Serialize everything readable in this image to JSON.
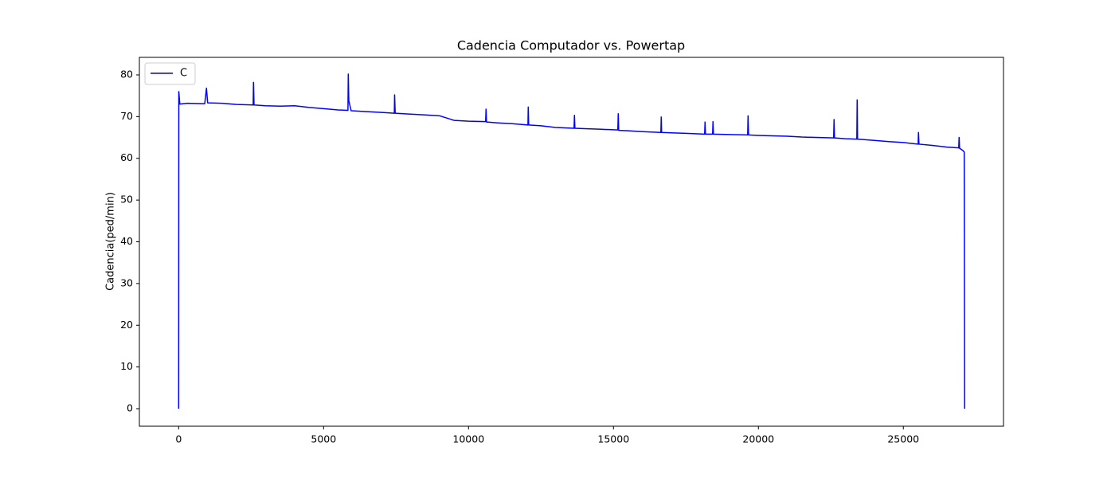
{
  "chart_data": {
    "type": "line",
    "title": "Cadencia Computador vs. Powertap",
    "ylabel": "Cadencia(ped/min)",
    "x": [
      0,
      5,
      40,
      300,
      900,
      960,
      1000,
      1500,
      2000,
      2570,
      2582,
      2600,
      3000,
      3500,
      4000,
      4500,
      5000,
      5500,
      5840,
      5852,
      5870,
      5950,
      6500,
      7000,
      7440,
      7450,
      7470,
      8000,
      8500,
      9000,
      9500,
      10000,
      10590,
      10604,
      10620,
      11000,
      11500,
      12050,
      12060,
      12075,
      12500,
      13000,
      13640,
      13654,
      13670,
      14000,
      14500,
      15150,
      15165,
      15180,
      15500,
      16000,
      16635,
      16648,
      16660,
      17000,
      17500,
      18145,
      18159,
      18175,
      18420,
      18434,
      18450,
      19000,
      19630,
      19643,
      19660,
      20000,
      20500,
      21000,
      21500,
      22000,
      22595,
      22610,
      22625,
      23000,
      23395,
      23407,
      23420,
      24000,
      24500,
      25000,
      25510,
      25522,
      25540,
      26000,
      26500,
      26910,
      26923,
      26940,
      27050,
      27100,
      27115
    ],
    "series": [
      {
        "name": "C",
        "color": "#0000ff",
        "values": [
          0,
          76,
          73,
          73.2,
          73.1,
          76.8,
          73.3,
          73.2,
          72.9,
          72.8,
          78.2,
          72.8,
          72.6,
          72.5,
          72.6,
          72.2,
          71.9,
          71.6,
          71.5,
          80.2,
          73.8,
          71.4,
          71.2,
          71,
          70.8,
          75.2,
          70.8,
          70.6,
          70.4,
          70.2,
          69.1,
          68.9,
          68.8,
          71.8,
          68.7,
          68.5,
          68.3,
          68,
          72.3,
          68,
          67.8,
          67.4,
          67.2,
          70.3,
          67.2,
          67.1,
          67,
          66.8,
          70.7,
          66.7,
          66.6,
          66.4,
          66.2,
          69.9,
          66.2,
          66.1,
          66,
          65.8,
          68.7,
          65.8,
          65.8,
          68.8,
          65.8,
          65.7,
          65.6,
          70.2,
          65.6,
          65.5,
          65.4,
          65.3,
          65.1,
          65,
          64.9,
          69.3,
          64.9,
          64.7,
          64.6,
          74,
          64.6,
          64.3,
          64,
          63.8,
          63.4,
          66.2,
          63.4,
          63.1,
          62.7,
          62.5,
          65,
          62.4,
          61.9,
          61.5,
          0
        ]
      }
    ],
    "xlim": [
      -1355,
      28455
    ],
    "ylim": [
      -4.2,
      84.2
    ],
    "xticks": [
      0,
      5000,
      10000,
      15000,
      20000,
      25000
    ],
    "yticks": [
      0,
      10,
      20,
      30,
      40,
      50,
      60,
      70,
      80
    ],
    "legend": "upper left"
  }
}
